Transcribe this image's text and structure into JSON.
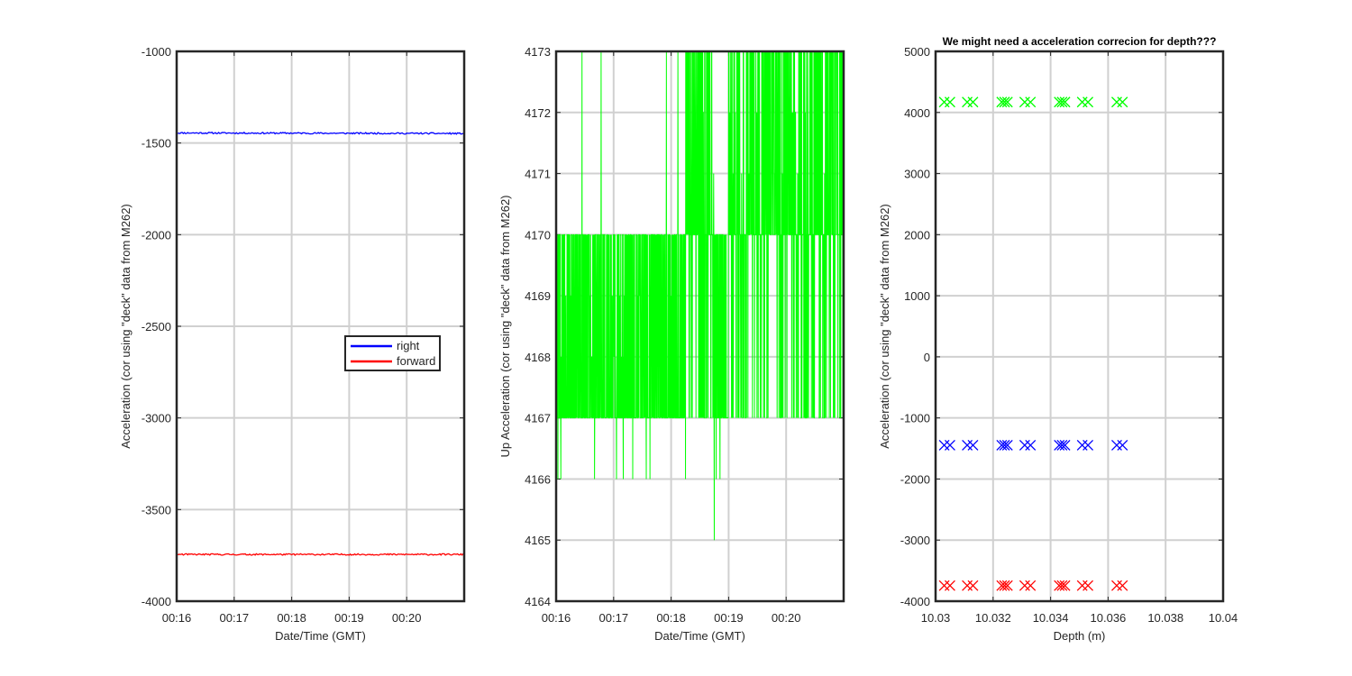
{
  "chart_data": [
    {
      "type": "line",
      "title": "",
      "xlabel": "Date/Time (GMT)",
      "ylabel": "Acceleration (cor using \"deck\" data from M262)",
      "x_ticks": [
        "00:16",
        "00:17",
        "00:18",
        "00:19",
        "00:20"
      ],
      "x_range": [
        "00:16:00",
        "00:21:00"
      ],
      "ylim": [
        -4000,
        -1000
      ],
      "y_ticks": [
        -1000,
        -1500,
        -2000,
        -2500,
        -3000,
        -3500,
        -4000
      ],
      "grid": true,
      "legend_position": "center-right",
      "series": [
        {
          "name": "right",
          "color": "#0000ff",
          "x": [
            "00:16:00",
            "00:21:00"
          ],
          "values": [
            -1445,
            -1448
          ]
        },
        {
          "name": "forward",
          "color": "#ff0000",
          "x": [
            "00:16:00",
            "00:21:00"
          ],
          "values": [
            -3745,
            -3745
          ]
        }
      ]
    },
    {
      "type": "line",
      "title": "",
      "xlabel": "Date/Time (GMT)",
      "ylabel": "Up Acceleration (cor using \"deck\" data from M262)",
      "x_ticks": [
        "00:16",
        "00:17",
        "00:18",
        "00:19",
        "00:20"
      ],
      "x_range": [
        "00:16:00",
        "00:21:00"
      ],
      "ylim": [
        4164,
        4173
      ],
      "y_ticks": [
        4173,
        4172,
        4171,
        4170,
        4169,
        4168,
        4167,
        4166,
        4165,
        4164
      ],
      "grid": true,
      "series": [
        {
          "color": "#00ff00",
          "description": "integer-quantized signal oscillating between 4167 and 4170; upper band 4170-4173 between ~00:18:15-00:18:45 and ~00:19:00-00:21:00 with spikes to 4173; occasional dips to 4166; single dip to 4165 near 00:18:45",
          "x": [
            "00:16:00",
            "00:16:27",
            "00:16:47",
            "00:17:55",
            "00:18:15",
            "00:18:45",
            "00:19:00",
            "00:21:00"
          ],
          "values": [
            4167,
            4173,
            4173,
            4173,
            4173,
            4165,
            4173,
            4170
          ]
        }
      ]
    },
    {
      "type": "scatter",
      "title": "We might need a acceleration correcion for depth???",
      "xlabel": "Depth (m)",
      "ylabel": "Acceleration (cor using \"deck\" data from M262)",
      "xlim": [
        10.03,
        10.04
      ],
      "x_ticks": [
        "10.03",
        "10.032",
        "10.034",
        "10.036",
        "10.038",
        "10.04"
      ],
      "ylim": [
        -4000,
        5000
      ],
      "y_ticks": [
        5000,
        4000,
        3000,
        2000,
        1000,
        0,
        -1000,
        -2000,
        -3000,
        -4000
      ],
      "grid": true,
      "marker": "x",
      "series": [
        {
          "color": "#00ff00",
          "x": [
            10.0303,
            10.0305,
            10.0311,
            10.0313,
            10.0323,
            10.0324,
            10.0325,
            10.0331,
            10.0333,
            10.0343,
            10.0344,
            10.0345,
            10.0351,
            10.0353,
            10.0363,
            10.0365
          ],
          "values": [
            4170,
            4170,
            4170,
            4170,
            4170,
            4170,
            4170,
            4170,
            4170,
            4170,
            4170,
            4170,
            4170,
            4170,
            4170,
            4170
          ]
        },
        {
          "color": "#0000ff",
          "x": [
            10.0303,
            10.0305,
            10.0311,
            10.0313,
            10.0323,
            10.0324,
            10.0325,
            10.0331,
            10.0333,
            10.0343,
            10.0344,
            10.0345,
            10.0351,
            10.0353,
            10.0363,
            10.0365
          ],
          "values": [
            -1447,
            -1447,
            -1447,
            -1447,
            -1447,
            -1447,
            -1447,
            -1447,
            -1447,
            -1447,
            -1447,
            -1447,
            -1447,
            -1447,
            -1447,
            -1447
          ]
        },
        {
          "color": "#ff0000",
          "x": [
            10.0303,
            10.0305,
            10.0311,
            10.0313,
            10.0323,
            10.0324,
            10.0325,
            10.0331,
            10.0333,
            10.0343,
            10.0344,
            10.0345,
            10.0351,
            10.0353,
            10.0363,
            10.0365
          ],
          "values": [
            -3745,
            -3745,
            -3745,
            -3745,
            -3745,
            -3745,
            -3745,
            -3745,
            -3745,
            -3745,
            -3745,
            -3745,
            -3745,
            -3745,
            -3745,
            -3745
          ]
        }
      ]
    }
  ]
}
